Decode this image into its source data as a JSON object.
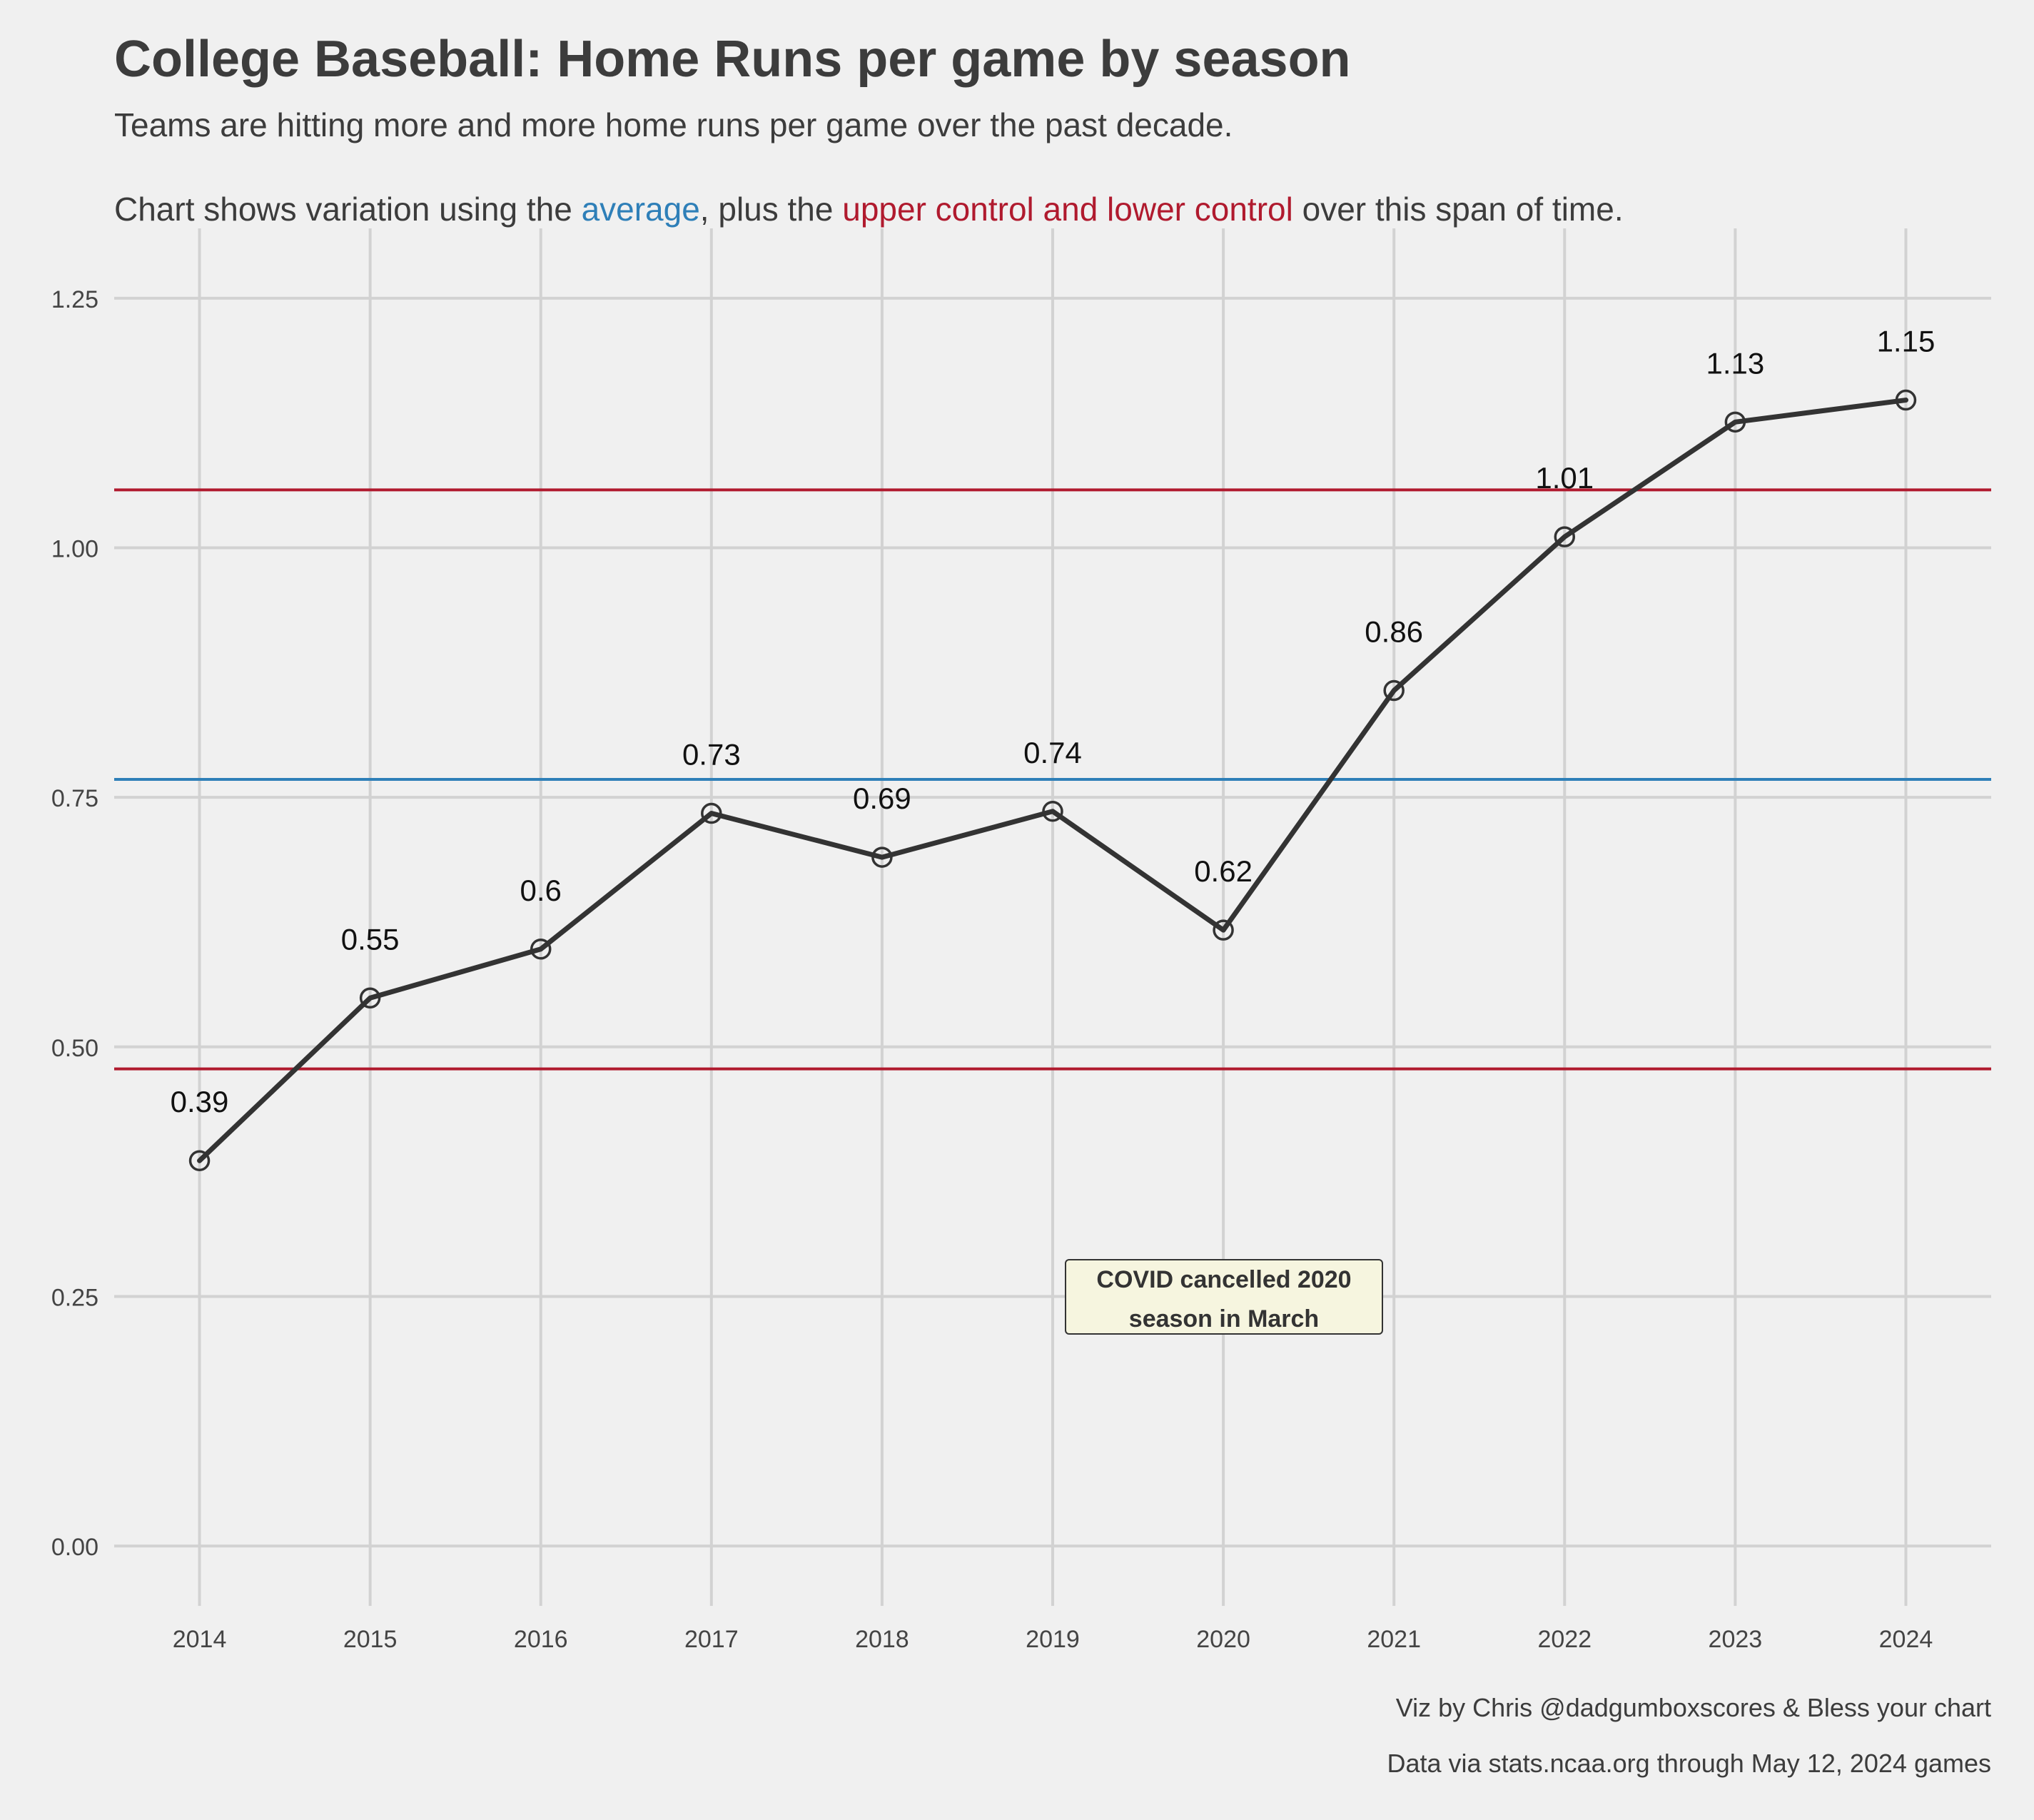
{
  "title": "College Baseball: Home Runs per game by season",
  "subtitle_line1": "Teams are hitting more and more home runs per game over the past decade.",
  "subtitle_line2": {
    "pre": "Chart shows variation using the ",
    "avg": "average",
    "mid": ", plus the ",
    "ctl": "upper control and lower control",
    "post": " over this span of time."
  },
  "annotation": {
    "line1": "COVID cancelled 2020",
    "line2": "season in March"
  },
  "captions": {
    "line1": "Viz by Chris @dadgumboxscores & Bless your chart",
    "line2": "Data via stats.ncaa.org through May 12, 2024 games"
  },
  "chart_data": {
    "type": "line",
    "x": [
      2014,
      2015,
      2016,
      2017,
      2018,
      2019,
      2020,
      2021,
      2022,
      2023,
      2024
    ],
    "values": [
      0.386,
      0.549,
      0.598,
      0.734,
      0.69,
      0.736,
      0.617,
      0.857,
      1.011,
      1.126,
      1.148
    ],
    "labels": [
      "0.39",
      "0.55",
      "0.6",
      "0.73",
      "0.69",
      "0.74",
      "0.62",
      "0.86",
      "1.01",
      "1.13",
      "1.15"
    ],
    "ylim": [
      -0.06,
      1.32
    ],
    "xlim": [
      2013.5,
      2024.5
    ],
    "yticks": [
      0.0,
      0.25,
      0.5,
      0.75,
      1.0,
      1.25
    ],
    "ytick_labels": [
      "0.00",
      "0.25",
      "0.50",
      "0.75",
      "1.00",
      "1.25"
    ],
    "reference_lines": {
      "average": 0.768,
      "upper_control": 1.058,
      "lower_control": 0.478
    },
    "grid": true,
    "colors": {
      "line": "#333333",
      "average": "#2e7fb8",
      "control": "#b01a2e",
      "grid": "#d2d2d2",
      "background": "#f0f0f0"
    }
  }
}
